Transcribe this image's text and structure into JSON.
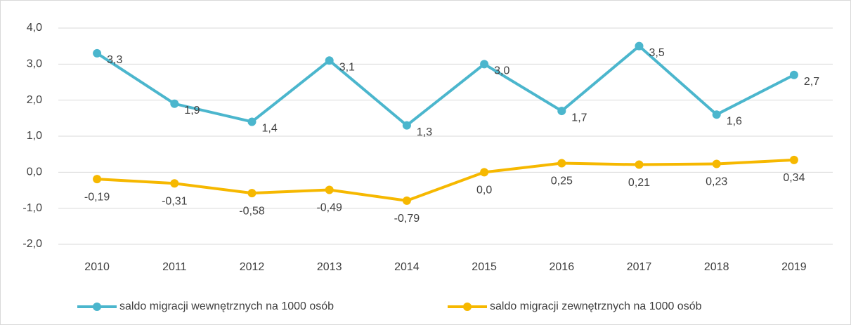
{
  "chart_data": {
    "type": "line",
    "categories": [
      "2010",
      "2011",
      "2012",
      "2013",
      "2014",
      "2015",
      "2016",
      "2017",
      "2018",
      "2019"
    ],
    "series": [
      {
        "name": "saldo migracji wewnętrznych na 1000 osób",
        "color": "#4bb6cd",
        "values": [
          3.3,
          1.9,
          1.4,
          3.1,
          1.3,
          3.0,
          1.7,
          3.5,
          1.6,
          2.7
        ],
        "value_labels": [
          "3,3",
          "1,9",
          "1,4",
          "3,1",
          "1,3",
          "3,0",
          "1,7",
          "3,5",
          "1,6",
          "2,7"
        ]
      },
      {
        "name": "saldo migracji zewnętrznych na 1000 osób",
        "color": "#f6b800",
        "values": [
          -0.19,
          -0.31,
          -0.58,
          -0.49,
          -0.79,
          0.0,
          0.25,
          0.21,
          0.23,
          0.34
        ],
        "value_labels": [
          "-0,19",
          "-0,31",
          "-0,58",
          "-0,49",
          "-0,79",
          "0,0",
          "0,25",
          "0,21",
          "0,23",
          "0,34"
        ]
      }
    ],
    "ylim": [
      -2,
      4
    ],
    "yticks": [
      {
        "value": -2,
        "label": "-2,0"
      },
      {
        "value": -1,
        "label": "-1,0"
      },
      {
        "value": 0,
        "label": "0,0"
      },
      {
        "value": 1,
        "label": "1,0"
      },
      {
        "value": 2,
        "label": "2,0"
      },
      {
        "value": 3,
        "label": "3,0"
      },
      {
        "value": 4,
        "label": "4,0"
      }
    ],
    "grid": true,
    "legend": "bottom"
  }
}
